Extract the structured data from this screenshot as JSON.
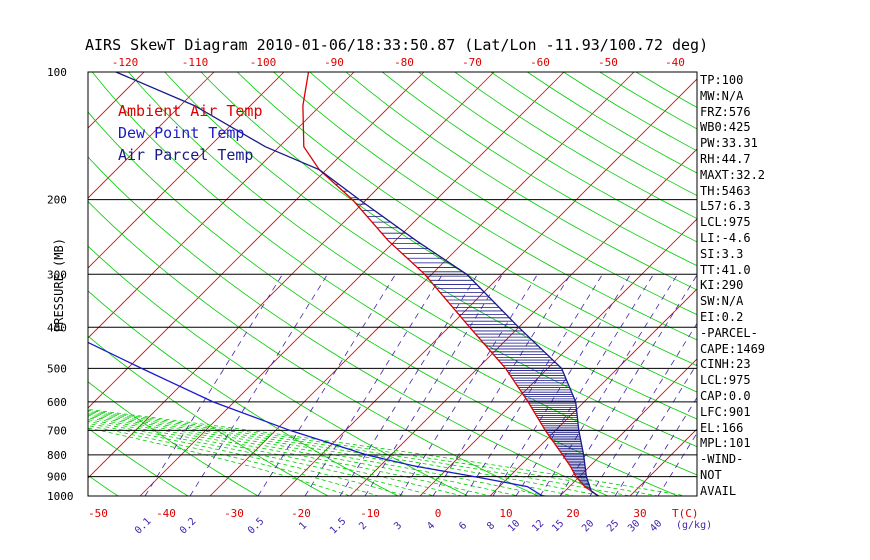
{
  "chart_data": {
    "type": "line",
    "title": "AIRS SkewT Diagram 2010-01-06/18:33:50.87 (Lat/Lon -11.93/100.72 deg)",
    "ylabel": "PRESSURE (MB)",
    "pressure_ticks": [
      100,
      200,
      300,
      400,
      500,
      600,
      700,
      800,
      900,
      1000
    ],
    "top_temp_ticks": [
      -120,
      -110,
      -100,
      -90,
      -80,
      -70,
      -60,
      -50,
      -40
    ],
    "bottom_temp_ticks": [
      -50,
      -40,
      -30,
      -20,
      -10,
      0,
      10,
      20,
      30
    ],
    "bottom_temp_unit": "T(C)",
    "mixing_ratio_ticks": [
      "0.1",
      "0.2",
      "0.5",
      "1",
      "1.5",
      "2",
      "3",
      "4",
      "6",
      "8",
      "10",
      "12",
      "15",
      "20",
      "25",
      "30",
      "40"
    ],
    "mixing_ratio_unit": "(g/kg)",
    "y_scale": "log",
    "ylim": [
      1000,
      100
    ],
    "legend_placement": "top-left",
    "series": [
      {
        "name": "Ambient Air Temp",
        "color": "#dd0000",
        "points": [
          [
            1000,
            25.5
          ],
          [
            950,
            22.2
          ],
          [
            900,
            19.5
          ],
          [
            850,
            17.2
          ],
          [
            800,
            14.5
          ],
          [
            700,
            8.5
          ],
          [
            600,
            2.0
          ],
          [
            500,
            -6.0
          ],
          [
            400,
            -17.0
          ],
          [
            300,
            -31.0
          ],
          [
            250,
            -41.0
          ],
          [
            200,
            -52.0
          ],
          [
            170,
            -61.0
          ],
          [
            150,
            -66.5
          ],
          [
            120,
            -72.5
          ],
          [
            100,
            -76.5
          ]
        ]
      },
      {
        "name": "Dew Point Temp",
        "color": "#1a1acc",
        "points": [
          [
            1000,
            17.5
          ],
          [
            950,
            14.0
          ],
          [
            900,
            5.0
          ],
          [
            850,
            -5.0
          ],
          [
            800,
            -13.5
          ],
          [
            700,
            -28.0
          ],
          [
            600,
            -43.0
          ],
          [
            500,
            -58.0
          ],
          [
            400,
            -76.0
          ],
          [
            300,
            -86.0
          ],
          [
            250,
            -95.0
          ],
          [
            200,
            -105.0
          ],
          [
            150,
            -110.5
          ],
          [
            120,
            -114.5
          ],
          [
            100,
            -117.0
          ]
        ]
      },
      {
        "name": "Air Parcel Temp",
        "color": "#1a1a88",
        "points": [
          [
            1000,
            25.5
          ],
          [
            975,
            23.8
          ],
          [
            900,
            21.0
          ],
          [
            800,
            17.5
          ],
          [
            700,
            13.3
          ],
          [
            600,
            8.8
          ],
          [
            500,
            2.0
          ],
          [
            400,
            -10.0
          ],
          [
            300,
            -25.0
          ],
          [
            250,
            -37.0
          ],
          [
            200,
            -51.0
          ],
          [
            170,
            -61.0
          ],
          [
            150,
            -72.0
          ],
          [
            120,
            -88.0
          ],
          [
            100,
            -104.0
          ]
        ]
      }
    ]
  },
  "indices": [
    "TP:100",
    "MW:N/A",
    "FRZ:576",
    "WB0:425",
    "PW:33.31",
    "RH:44.7",
    "MAXT:32.2",
    "TH:5463",
    "L57:6.3",
    "LCL:975",
    "LI:-4.6",
    "SI:3.3",
    "TT:41.0",
    "KI:290",
    "SW:N/A",
    "EI:0.2",
    "-PARCEL-",
    "CAPE:1469",
    "CINH:23",
    "LCL:975",
    "CAP:0.0",
    "LFC:901",
    "EL:166",
    "MPL:101",
    "-WIND-",
    "NOT",
    "AVAIL"
  ],
  "colors": {
    "temp_lines": "#dd0000",
    "dry_adiabat": "#00cc00",
    "moist_adiabat": "#00cc00",
    "mixing_ratio": "#4422aa",
    "cape_hatch": "#1a1a88"
  }
}
